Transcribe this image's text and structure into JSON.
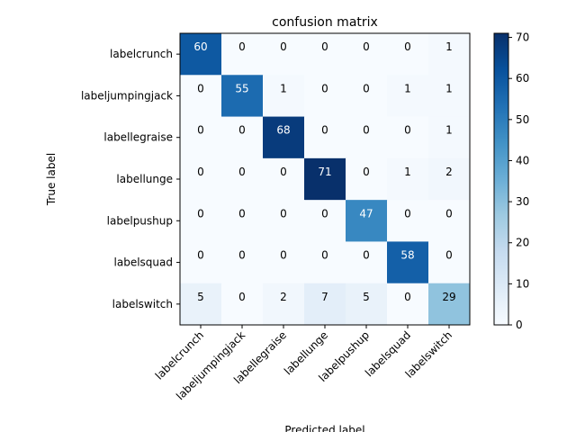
{
  "chart_data": {
    "type": "heatmap",
    "title": "confusion matrix",
    "xlabel": "Predicted label",
    "ylabel": "True label",
    "row_labels": [
      "labelcrunch",
      "labeljumpingjack",
      "labellegraise",
      "labellunge",
      "labelpushup",
      "labelsquad",
      "labelswitch"
    ],
    "col_labels": [
      "labelcrunch",
      "labeljumpingjack",
      "labellegraise",
      "labellunge",
      "labelpushup",
      "labelsquad",
      "labelswitch"
    ],
    "matrix": [
      [
        60,
        0,
        0,
        0,
        0,
        0,
        1
      ],
      [
        0,
        55,
        1,
        0,
        0,
        1,
        1
      ],
      [
        0,
        0,
        68,
        0,
        0,
        0,
        1
      ],
      [
        0,
        0,
        0,
        71,
        0,
        1,
        2
      ],
      [
        0,
        0,
        0,
        0,
        47,
        0,
        0
      ],
      [
        0,
        0,
        0,
        0,
        0,
        58,
        0
      ],
      [
        5,
        0,
        2,
        7,
        5,
        0,
        29
      ]
    ],
    "colormap": "Blues",
    "vmin": 0,
    "vmax": 71,
    "colorbar_ticks": [
      0,
      10,
      20,
      30,
      40,
      50,
      60,
      70
    ]
  }
}
